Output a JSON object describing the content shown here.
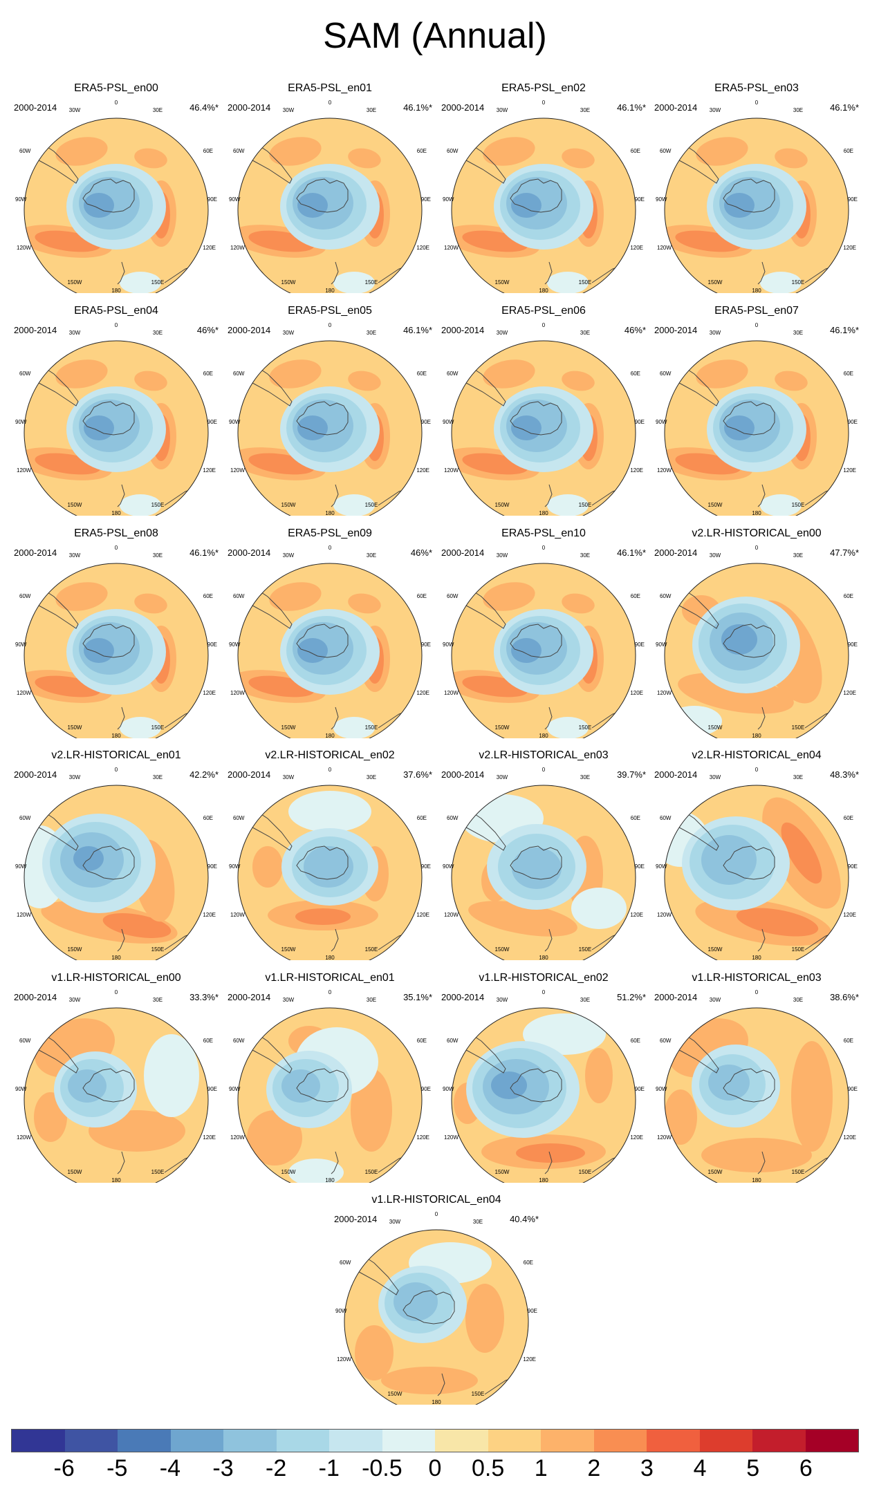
{
  "title": "SAM (Annual)",
  "period": "2000-2014",
  "lon_labels": {
    "top": "0",
    "n30w": "30W",
    "n30e": "30E",
    "w60": "60W",
    "e60": "60E",
    "w90": "90W",
    "e90": "90E",
    "w120": "120W",
    "e120": "120E",
    "w150": "150W",
    "e150": "150E",
    "bottom": "180"
  },
  "panels": [
    {
      "title": "ERA5-PSL_en00",
      "pct": "46.4%*",
      "style": "era"
    },
    {
      "title": "ERA5-PSL_en01",
      "pct": "46.1%*",
      "style": "era"
    },
    {
      "title": "ERA5-PSL_en02",
      "pct": "46.1%*",
      "style": "era"
    },
    {
      "title": "ERA5-PSL_en03",
      "pct": "46.1%*",
      "style": "era"
    },
    {
      "title": "ERA5-PSL_en04",
      "pct": "46%*",
      "style": "era"
    },
    {
      "title": "ERA5-PSL_en05",
      "pct": "46.1%*",
      "style": "era"
    },
    {
      "title": "ERA5-PSL_en06",
      "pct": "46%*",
      "style": "era"
    },
    {
      "title": "ERA5-PSL_en07",
      "pct": "46.1%*",
      "style": "era"
    },
    {
      "title": "ERA5-PSL_en08",
      "pct": "46.1%*",
      "style": "era"
    },
    {
      "title": "ERA5-PSL_en09",
      "pct": "46%*",
      "style": "era"
    },
    {
      "title": "ERA5-PSL_en10",
      "pct": "46.1%*",
      "style": "era"
    },
    {
      "title": "v2.LR-HISTORICAL_en00",
      "pct": "47.7%*",
      "style": "v2a"
    },
    {
      "title": "v2.LR-HISTORICAL_en01",
      "pct": "42.2%*",
      "style": "v2b"
    },
    {
      "title": "v2.LR-HISTORICAL_en02",
      "pct": "37.6%*",
      "style": "v2c"
    },
    {
      "title": "v2.LR-HISTORICAL_en03",
      "pct": "39.7%*",
      "style": "v2d"
    },
    {
      "title": "v2.LR-HISTORICAL_en04",
      "pct": "48.3%*",
      "style": "v2e"
    },
    {
      "title": "v1.LR-HISTORICAL_en00",
      "pct": "33.3%*",
      "style": "v1a"
    },
    {
      "title": "v1.LR-HISTORICAL_en01",
      "pct": "35.1%*",
      "style": "v1b"
    },
    {
      "title": "v1.LR-HISTORICAL_en02",
      "pct": "51.2%*",
      "style": "v1c"
    },
    {
      "title": "v1.LR-HISTORICAL_en03",
      "pct": "38.6%*",
      "style": "v1d"
    },
    {
      "title": "v1.LR-HISTORICAL_en04",
      "pct": "40.4%*",
      "style": "v1e"
    }
  ],
  "colorbar": {
    "colors": [
      "#313695",
      "#3f54a3",
      "#4a7ab7",
      "#6fa6cf",
      "#8fc3dd",
      "#a9d8e7",
      "#c6e6ef",
      "#e0f3f3",
      "#f8e6a8",
      "#fdd283",
      "#fdb26a",
      "#f98e52",
      "#f0603e",
      "#dd3d2d",
      "#c31e2c",
      "#a50026"
    ],
    "labels": [
      "-6",
      "-5",
      "-4",
      "-3",
      "-2",
      "-1",
      "-0.5",
      "0",
      "0.5",
      "1",
      "2",
      "3",
      "4",
      "5",
      "6"
    ]
  }
}
